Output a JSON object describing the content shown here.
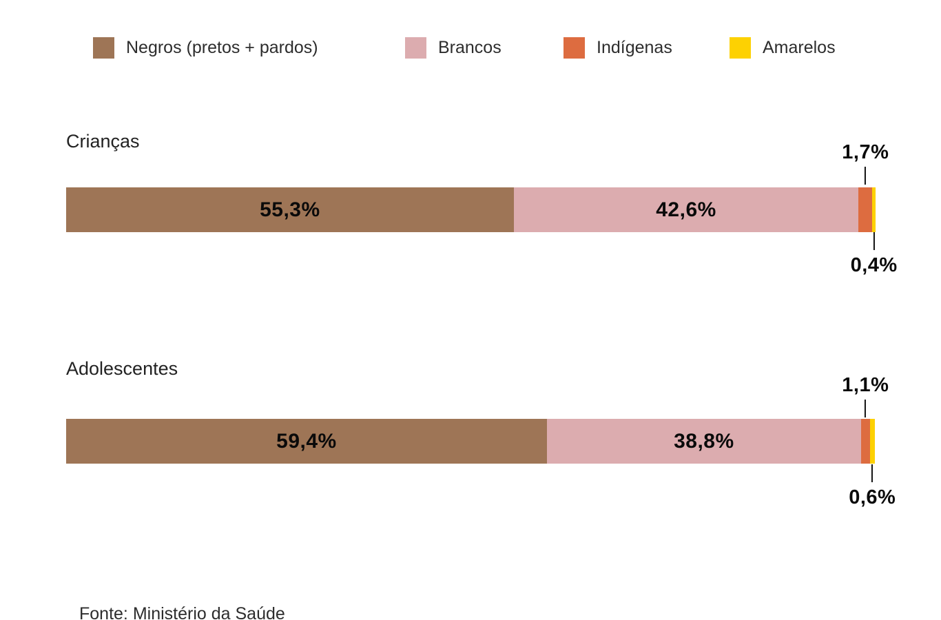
{
  "legend": {
    "items": [
      {
        "id": "negros",
        "label": "Negros (pretos + pardos)",
        "color": "#9E7556"
      },
      {
        "id": "brancos",
        "label": "Brancos",
        "color": "#DCACAF"
      },
      {
        "id": "indigenas",
        "label": "Indígenas",
        "color": "#DD6C40"
      },
      {
        "id": "amarelos",
        "label": "Amarelos",
        "color": "#FDD102"
      }
    ]
  },
  "rows": [
    {
      "category": "Crianças",
      "segments": [
        {
          "id": "negros",
          "value": 55.3,
          "label": "55,3%"
        },
        {
          "id": "brancos",
          "value": 42.6,
          "label": "42,6%"
        },
        {
          "id": "indigenas",
          "value": 1.7,
          "label": ""
        },
        {
          "id": "amarelos",
          "value": 0.4,
          "label": ""
        }
      ],
      "callouts": {
        "top": {
          "segment": "indigenas",
          "label": "1,7%"
        },
        "bottom": {
          "segment": "amarelos",
          "label": "0,4%"
        }
      }
    },
    {
      "category": "Adolescentes",
      "segments": [
        {
          "id": "negros",
          "value": 59.4,
          "label": "59,4%"
        },
        {
          "id": "brancos",
          "value": 38.8,
          "label": "38,8%"
        },
        {
          "id": "indigenas",
          "value": 1.1,
          "label": ""
        },
        {
          "id": "amarelos",
          "value": 0.6,
          "label": ""
        }
      ],
      "callouts": {
        "top": {
          "segment": "indigenas",
          "label": "1,1%"
        },
        "bottom": {
          "segment": "amarelos",
          "label": "0,6%"
        }
      }
    }
  ],
  "footer": {
    "source": "Fonte: Ministério da Saúde"
  },
  "chart_data": {
    "type": "bar",
    "orientation": "horizontal",
    "stacked": true,
    "categories": [
      "Crianças",
      "Adolescentes"
    ],
    "series": [
      {
        "name": "Negros (pretos + pardos)",
        "color": "#9E7556",
        "values": [
          55.3,
          59.4
        ]
      },
      {
        "name": "Brancos",
        "color": "#DCACAF",
        "values": [
          42.6,
          38.8
        ]
      },
      {
        "name": "Indígenas",
        "color": "#DD6C40",
        "values": [
          1.7,
          1.1
        ]
      },
      {
        "name": "Amarelos",
        "color": "#FDD102",
        "values": [
          0.4,
          0.6
        ]
      }
    ],
    "value_unit": "%",
    "value_decimal_separator": ",",
    "xlim": [
      0,
      100
    ],
    "grid": false,
    "legend_position": "top",
    "source": "Fonte: Ministério da Saúde"
  }
}
